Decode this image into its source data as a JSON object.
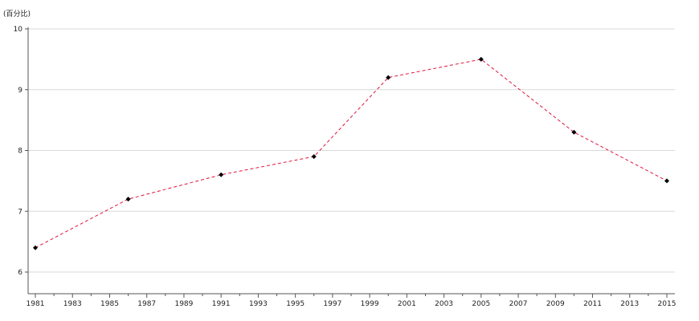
{
  "chart_data": {
    "type": "line",
    "title": "",
    "xlabel": "",
    "ylabel": "",
    "unit_label": "(百分比)",
    "x_ticks": [
      1981,
      1983,
      1985,
      1987,
      1989,
      1991,
      1993,
      1995,
      1997,
      1999,
      2001,
      2003,
      2005,
      2007,
      2009,
      2011,
      2013,
      2015
    ],
    "xlim": [
      1981,
      2015
    ],
    "ylim": [
      6,
      10
    ],
    "y_ticks": [
      6,
      7,
      8,
      9,
      10
    ],
    "grid": true,
    "legend": "none",
    "series": [
      {
        "x": [
          1981,
          1986,
          1991,
          1996,
          2000,
          2005,
          2010,
          2015
        ],
        "values": [
          6.4,
          7.2,
          7.6,
          7.9,
          9.2,
          9.5,
          8.3,
          7.5
        ],
        "line_color": "#e0143c",
        "marker_color": "#000000",
        "line_style": "dashed",
        "marker": "diamond"
      }
    ]
  }
}
